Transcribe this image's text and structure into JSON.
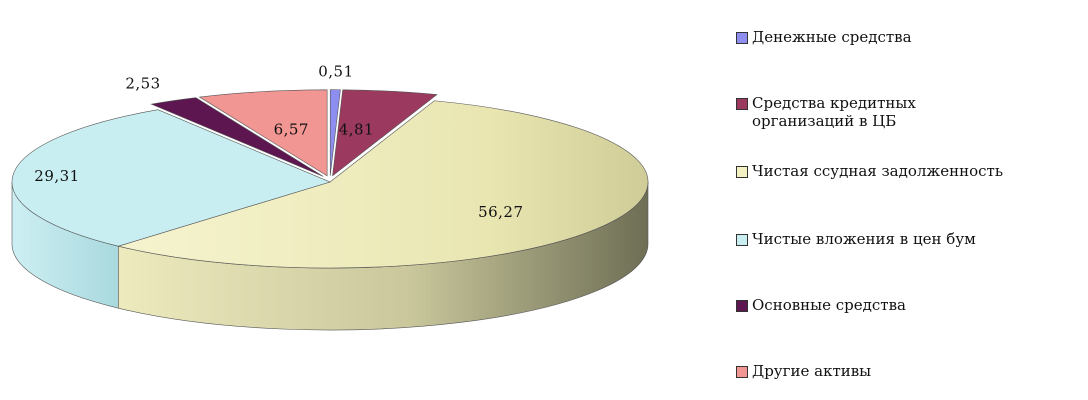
{
  "chart_data": {
    "type": "pie",
    "title": "",
    "slices": [
      {
        "label": "Денежные средства",
        "value": 0.51,
        "value_text": "0,51",
        "color": "#8E8EF0"
      },
      {
        "label": "Средства кредитных\nорганизаций в ЦБ",
        "value": 4.81,
        "value_text": "4,81",
        "color": "#9B3A5E"
      },
      {
        "label": "Чистая ссудная задолженность",
        "value": 56.27,
        "value_text": "56,27",
        "color": "#F3F0C2"
      },
      {
        "label": "Чистые вложения в цен бум",
        "value": 29.31,
        "value_text": "29,31",
        "color": "#C8EEF2"
      },
      {
        "label": "Основные средства",
        "value": 2.53,
        "value_text": "2,53",
        "color": "#5E1650"
      },
      {
        "label": "Другие активы",
        "value": 6.57,
        "value_text": "6,57",
        "color": "#F19692"
      }
    ],
    "legend_position": "right",
    "style": "3d-exploded"
  }
}
